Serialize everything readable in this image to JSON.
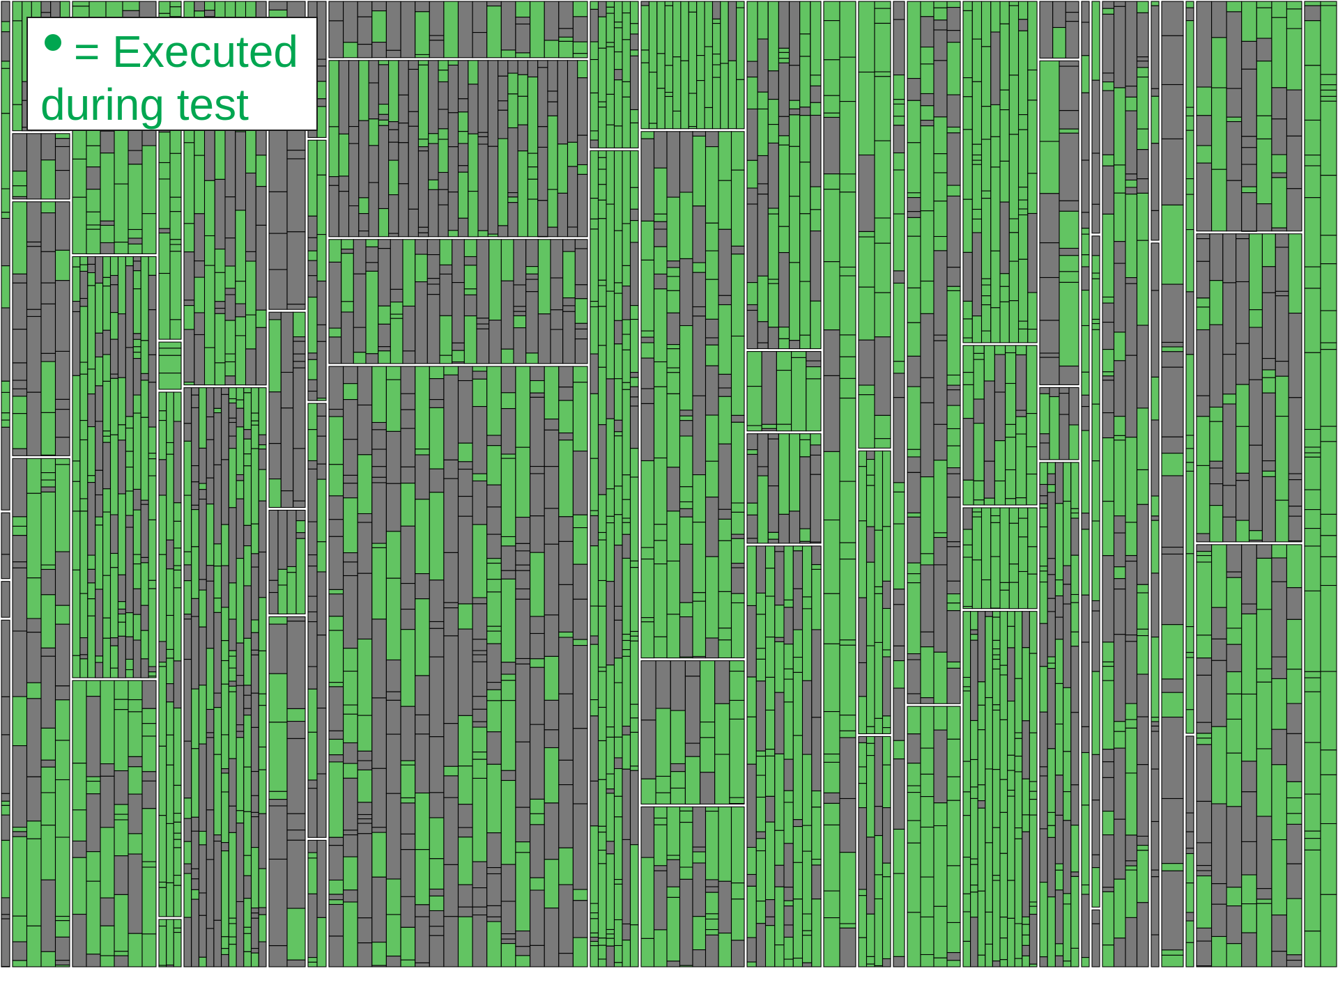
{
  "legend": {
    "marker_icon": "filled-circle-icon",
    "line1": "= Executed",
    "line2": "during test"
  },
  "colors": {
    "executed": "#62c462",
    "not_executed": "#7a7a7a",
    "cell_border": "#000000",
    "group_border": "#ffffff",
    "legend_text": "#00a650",
    "background": "#ffffff"
  }
}
